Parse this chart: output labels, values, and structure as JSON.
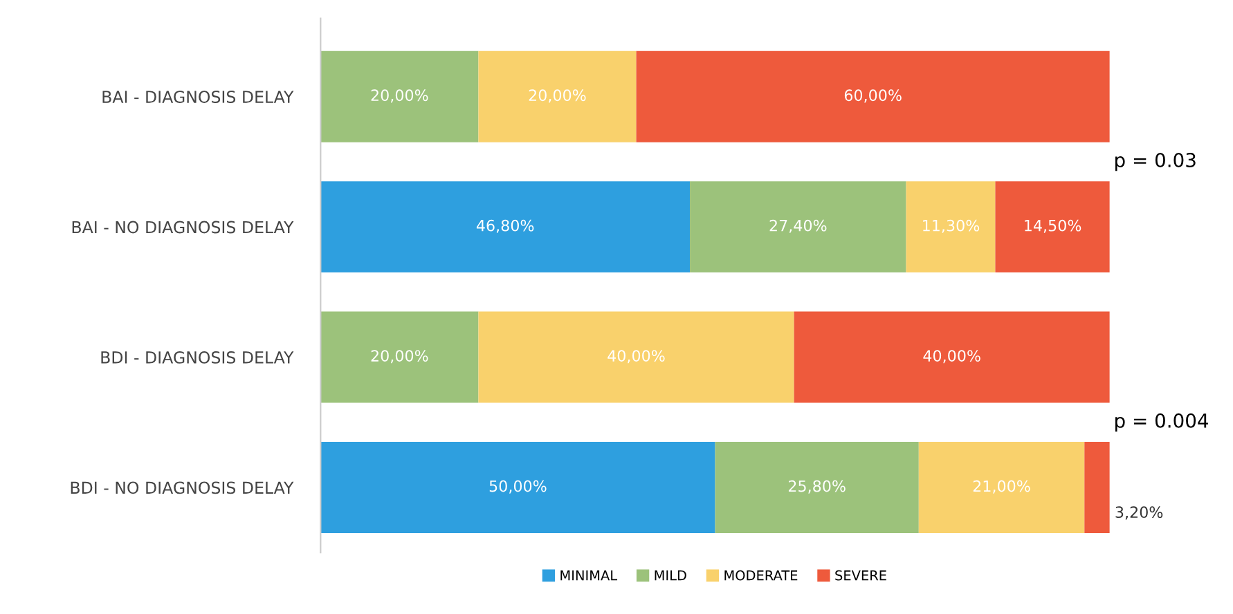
{
  "chart_data": {
    "type": "bar",
    "orientation": "horizontal",
    "stacked": true,
    "categories": [
      "BAI - DIAGNOSIS DELAY",
      "BAI - NO DIAGNOSIS DELAY",
      "BDI - DIAGNOSIS DELAY",
      "BDI - NO DIAGNOSIS DELAY"
    ],
    "series": [
      {
        "name": "MINIMAL",
        "color": "#2e9fdf",
        "values": [
          null,
          46.8,
          null,
          50
        ],
        "value_labels": [
          null,
          "46,80%",
          null,
          "50,00%"
        ]
      },
      {
        "name": "MILD",
        "color": "#9cc27b",
        "values": [
          20,
          27.4,
          20,
          25.8
        ],
        "value_labels": [
          "20,00%",
          "27,40%",
          "20,00%",
          "25,80%"
        ]
      },
      {
        "name": "MODERATE",
        "color": "#f9d16c",
        "values": [
          20,
          11.3,
          40,
          21
        ],
        "value_labels": [
          "20,00%",
          "11,30%",
          "40,00%",
          "21,00%"
        ]
      },
      {
        "name": "SEVERE",
        "color": "#ee5a3c",
        "values": [
          60,
          14.5,
          40,
          3.2
        ],
        "value_labels": [
          "60,00%",
          "14,50%",
          "40,00%",
          "3,20%"
        ]
      }
    ],
    "annotations": [
      "p = 0.03",
      "p = 0.004"
    ],
    "legend": "bottom",
    "grid": false
  }
}
